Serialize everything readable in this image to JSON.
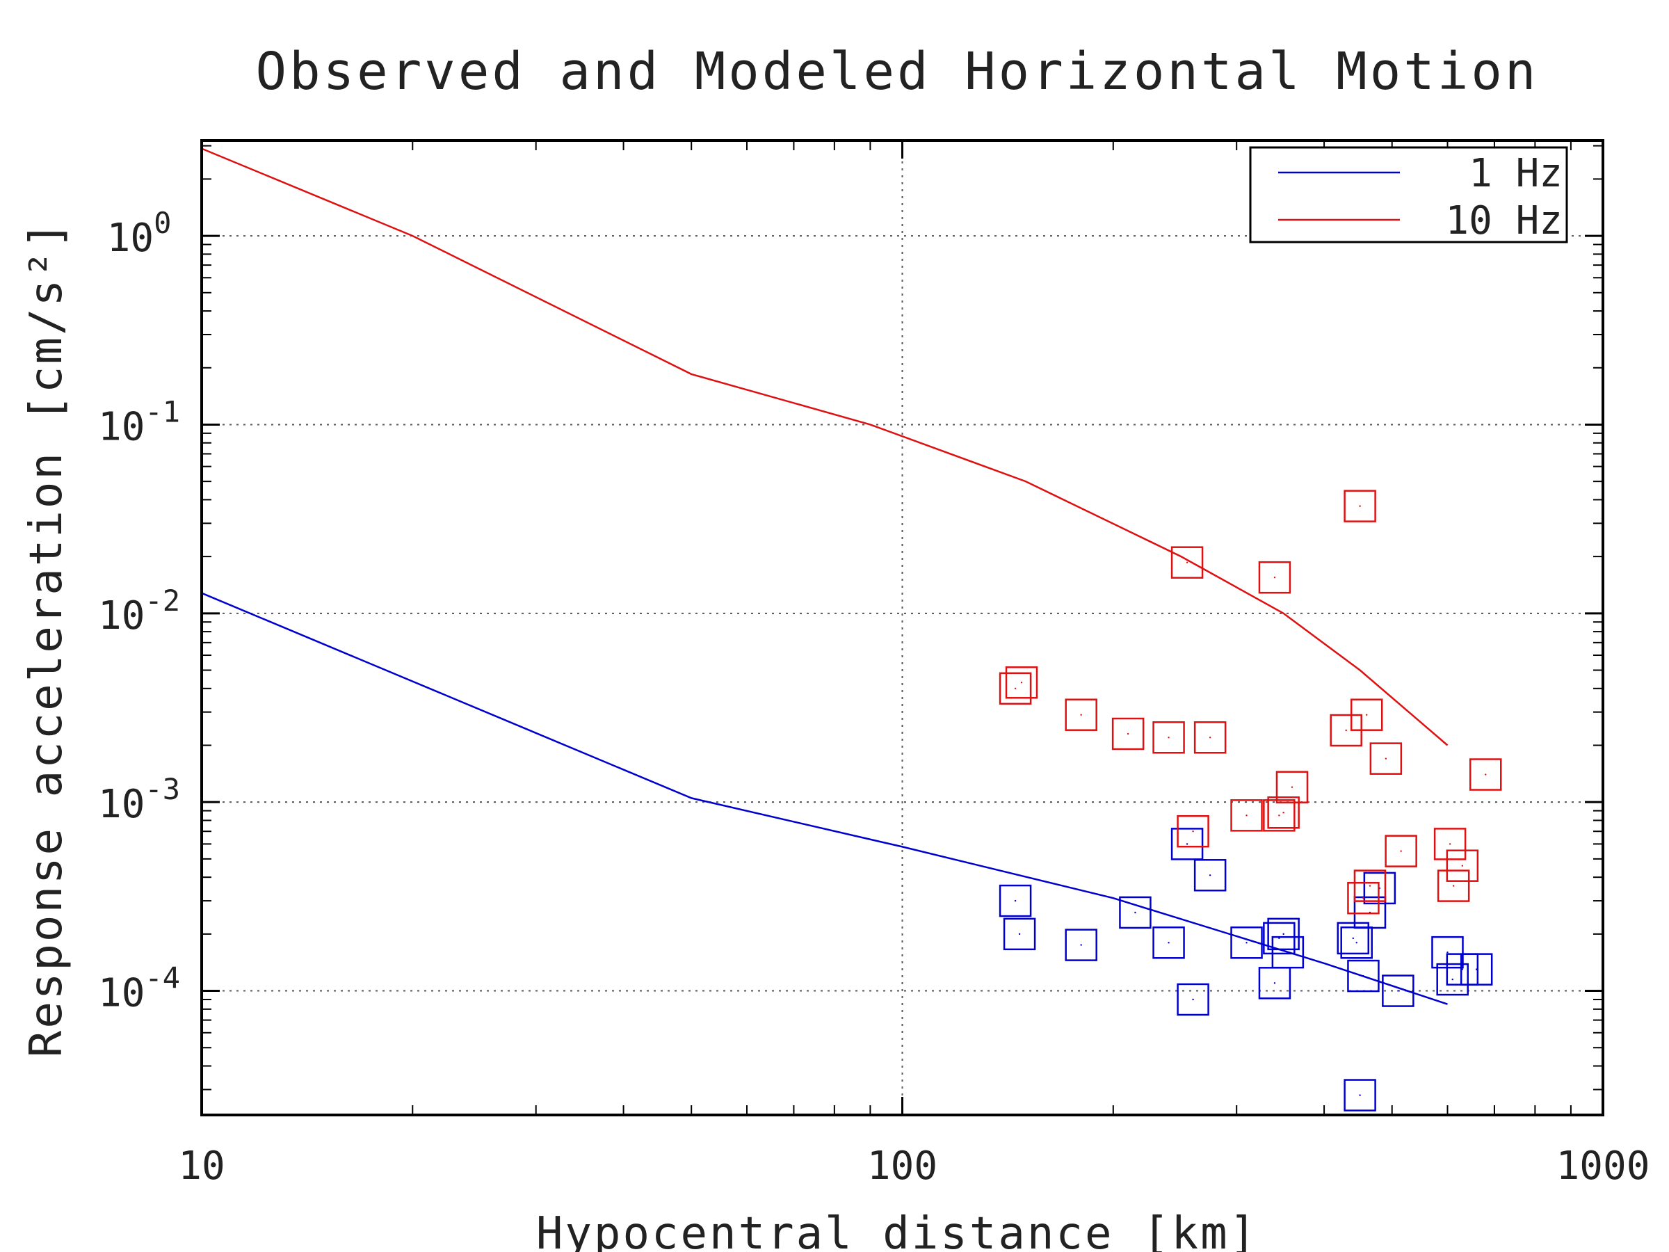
{
  "chart_data": {
    "type": "scatter",
    "title": "Observed and Modeled Horizontal Motion",
    "xlabel": "Hypocentral distance [km]",
    "ylabel": "Response acceleration [cm/s²]",
    "x_scale": "log",
    "y_scale": "log",
    "xlim": [
      10,
      1000
    ],
    "ylim": [
      2.2e-05,
      3.2
    ],
    "grid": true,
    "legend_position": "top-right",
    "x_ticks": [
      {
        "value": 10,
        "label": "10"
      },
      {
        "value": 100,
        "label": "100"
      },
      {
        "value": 1000,
        "label": "1000"
      }
    ],
    "y_ticks": [
      {
        "value": 1,
        "base": "10",
        "exp": "0"
      },
      {
        "value": 0.1,
        "base": "10",
        "exp": "-1"
      },
      {
        "value": 0.01,
        "base": "10",
        "exp": "-2"
      },
      {
        "value": 0.001,
        "base": "10",
        "exp": "-3"
      },
      {
        "value": 0.0001,
        "base": "10",
        "exp": "-4"
      }
    ],
    "series": [
      {
        "name": "1 Hz",
        "color": "#0000cc",
        "model_line": [
          [
            10,
            0.0128
          ],
          [
            50,
            0.00105
          ],
          [
            100,
            0.00058
          ],
          [
            200,
            0.00031
          ],
          [
            400,
            0.00014
          ],
          [
            600,
            8.5e-05
          ]
        ],
        "observed": [
          [
            145,
            0.0003
          ],
          [
            147,
            0.0002
          ],
          [
            180,
            0.000175
          ],
          [
            215,
            0.00026
          ],
          [
            240,
            0.00018
          ],
          [
            255,
            0.0006
          ],
          [
            260,
            9e-05
          ],
          [
            275,
            0.00041
          ],
          [
            310,
            0.00018
          ],
          [
            340,
            0.00011
          ],
          [
            345,
            0.00019
          ],
          [
            350,
            0.0002
          ],
          [
            355,
            0.00016
          ],
          [
            440,
            0.00019
          ],
          [
            445,
            0.00018
          ],
          [
            450,
            2.8e-05
          ],
          [
            455,
            0.00012
          ],
          [
            465,
            0.00026
          ],
          [
            480,
            0.00035
          ],
          [
            510,
            0.0001
          ],
          [
            600,
            0.00016
          ],
          [
            610,
            0.000115
          ],
          [
            630,
            0.00013
          ],
          [
            660,
            0.00013
          ]
        ]
      },
      {
        "name": "10 Hz",
        "color": "#dd1111",
        "model_line": [
          [
            10,
            2.9
          ],
          [
            20,
            1.0
          ],
          [
            50,
            0.185
          ],
          [
            90,
            0.1
          ],
          [
            150,
            0.05
          ],
          [
            250,
            0.02
          ],
          [
            350,
            0.01
          ],
          [
            450,
            0.005
          ],
          [
            600,
            0.002
          ]
        ],
        "observed": [
          [
            145,
            0.004
          ],
          [
            148,
            0.0043
          ],
          [
            180,
            0.0029
          ],
          [
            210,
            0.0023
          ],
          [
            240,
            0.0022
          ],
          [
            255,
            0.0186
          ],
          [
            260,
            0.0007
          ],
          [
            275,
            0.0022
          ],
          [
            310,
            0.00085
          ],
          [
            340,
            0.0155
          ],
          [
            345,
            0.00085
          ],
          [
            350,
            0.00088
          ],
          [
            360,
            0.0012
          ],
          [
            430,
            0.0024
          ],
          [
            450,
            0.037
          ],
          [
            455,
            0.00031
          ],
          [
            460,
            0.0029
          ],
          [
            465,
            0.00036
          ],
          [
            490,
            0.0017
          ],
          [
            515,
            0.00055
          ],
          [
            605,
            0.0006
          ],
          [
            612,
            0.00036
          ],
          [
            630,
            0.00046
          ],
          [
            680,
            0.0014
          ]
        ]
      }
    ]
  }
}
